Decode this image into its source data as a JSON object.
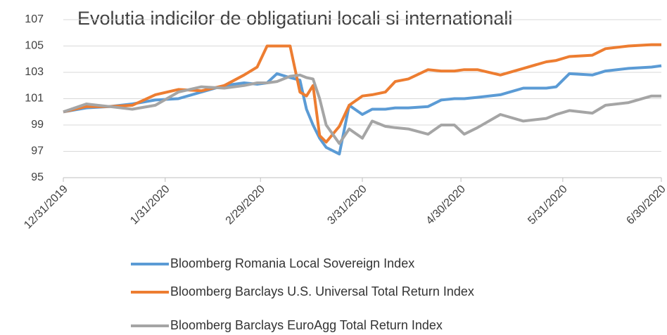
{
  "chart_data": {
    "type": "line",
    "title": "Evolutia indicilor de obligatiuni locali si internationali",
    "x": [
      "12/31/2019",
      "1/7/2020",
      "1/14/2020",
      "1/21/2020",
      "1/28/2020",
      "2/4/2020",
      "2/11/2020",
      "2/18/2020",
      "2/24/2020",
      "2/28/2020",
      "3/2/2020",
      "3/5/2020",
      "3/9/2020",
      "3/12/2020",
      "3/14/2020",
      "3/16/2020",
      "3/18/2020",
      "3/20/2020",
      "3/24/2020",
      "3/27/2020",
      "3/31/2020",
      "4/3/2020",
      "4/7/2020",
      "4/10/2020",
      "4/14/2020",
      "4/20/2020",
      "4/24/2020",
      "4/28/2020",
      "5/1/2020",
      "5/5/2020",
      "5/12/2020",
      "5/19/2020",
      "5/26/2020",
      "5/29/2020",
      "6/2/2020",
      "6/9/2020",
      "6/13/2020",
      "6/20/2020",
      "6/27/2020",
      "6/30/2020"
    ],
    "series": [
      {
        "name": "Bloomberg Romania Local Sovereign Index",
        "color": "#5b9bd5",
        "values": [
          100,
          100.3,
          100.4,
          100.6,
          100.9,
          101.0,
          101.5,
          102.0,
          102.2,
          102.1,
          102.2,
          102.9,
          102.6,
          102.4,
          100.2,
          99.0,
          98.0,
          97.3,
          96.8,
          100.5,
          99.8,
          100.2,
          100.2,
          100.3,
          100.3,
          100.4,
          100.9,
          101.0,
          101.0,
          101.1,
          101.3,
          101.8,
          101.8,
          101.9,
          102.9,
          102.8,
          103.1,
          103.3,
          103.4,
          103.5
        ]
      },
      {
        "name": "Bloomberg Barclays U.S. Universal Total Return Index",
        "color": "#ed7d31",
        "values": [
          100,
          100.4,
          100.4,
          100.5,
          101.3,
          101.7,
          101.6,
          102.0,
          102.8,
          103.4,
          105.0,
          105.0,
          105.0,
          101.5,
          101.2,
          102.0,
          98.2,
          97.7,
          98.9,
          100.5,
          101.2,
          101.3,
          101.5,
          102.3,
          102.5,
          103.2,
          103.1,
          103.1,
          103.2,
          103.2,
          102.8,
          103.3,
          103.8,
          103.9,
          104.2,
          104.3,
          104.8,
          105.0,
          105.1,
          105.1
        ]
      },
      {
        "name": "Bloomberg Barclays EuroAgg Total Return Index",
        "color": "#a5a5a5",
        "values": [
          100,
          100.6,
          100.4,
          100.2,
          100.5,
          101.5,
          101.9,
          101.8,
          102.0,
          102.2,
          102.2,
          102.3,
          102.7,
          102.8,
          102.6,
          102.5,
          101.0,
          99.0,
          97.6,
          98.7,
          98.0,
          99.3,
          98.9,
          98.8,
          98.7,
          98.3,
          99.0,
          99.0,
          98.3,
          98.8,
          99.8,
          99.3,
          99.5,
          99.8,
          100.1,
          99.9,
          100.5,
          100.7,
          101.2,
          101.2
        ]
      }
    ],
    "xlim": [
      "12/31/2019",
      "6/30/2020"
    ],
    "xticks": [
      "12/31/2019",
      "1/31/2020",
      "2/29/2020",
      "3/31/2020",
      "4/30/2020",
      "5/31/2020",
      "6/30/2020"
    ],
    "ylim": [
      95,
      107
    ],
    "yticks": [
      95,
      97,
      99,
      101,
      103,
      105,
      107
    ],
    "grid": true
  }
}
